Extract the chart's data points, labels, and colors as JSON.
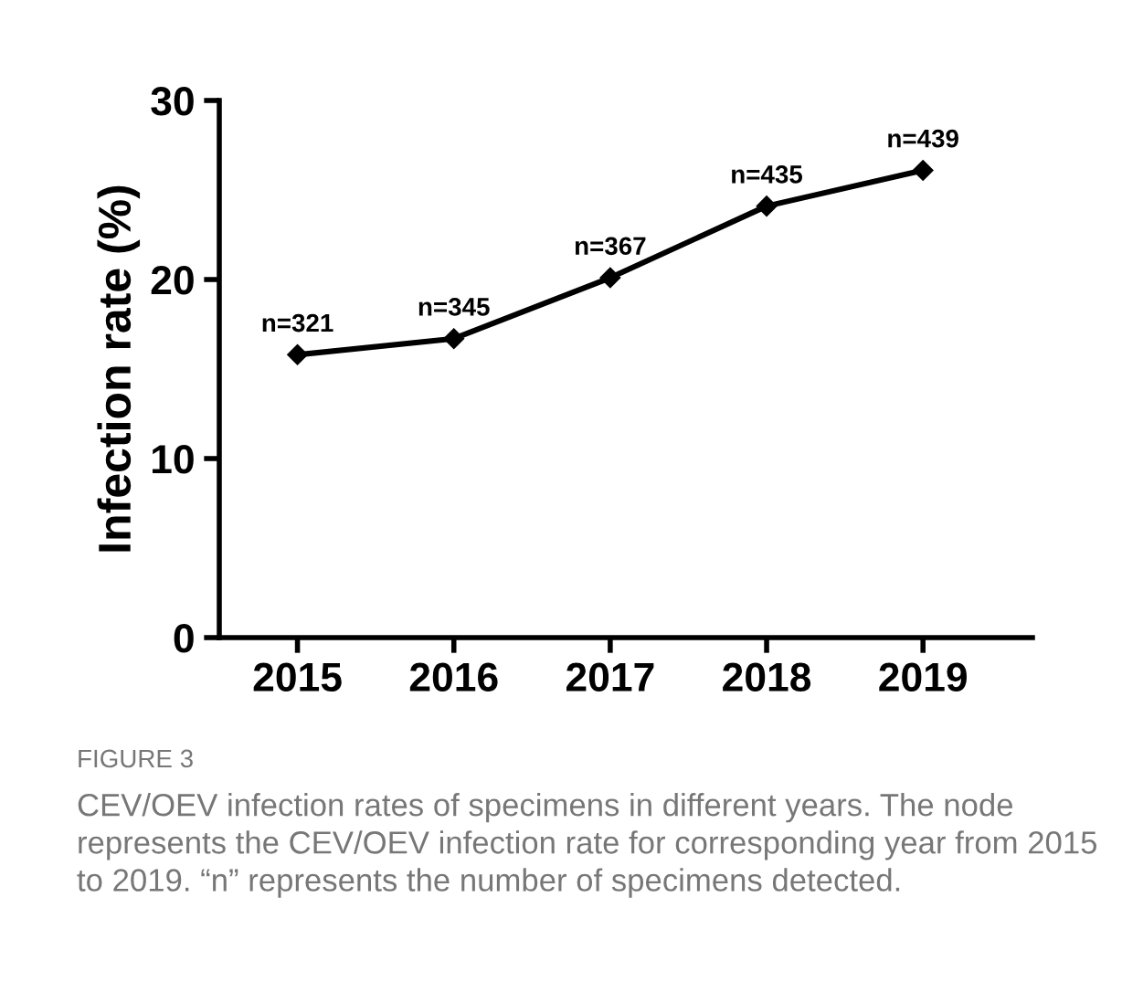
{
  "chart_data": {
    "type": "line",
    "ylabel": "Infection rate (%)",
    "categories": [
      "2015",
      "2016",
      "2017",
      "2018",
      "2019"
    ],
    "series": [
      {
        "color": "#000000",
        "values": [
          15.8,
          16.7,
          20.1,
          24.1,
          26.1
        ]
      }
    ],
    "value_labels": [
      "n=321",
      "n=345",
      "n=367",
      "n=435",
      "n=439"
    ],
    "ylim": [
      0,
      30
    ],
    "yticks": [
      0,
      10,
      20,
      30
    ],
    "grid": false,
    "legend": false,
    "marker": "diamond",
    "line_style": "solid",
    "annotations": [
      "FIGURE 3",
      "CEV/OEV infection rates of specimens in different years. The node represents the CEV/OEV infection rate for corresponding year from 2015 to 2019. “n” represents the number of specimens detected."
    ]
  }
}
